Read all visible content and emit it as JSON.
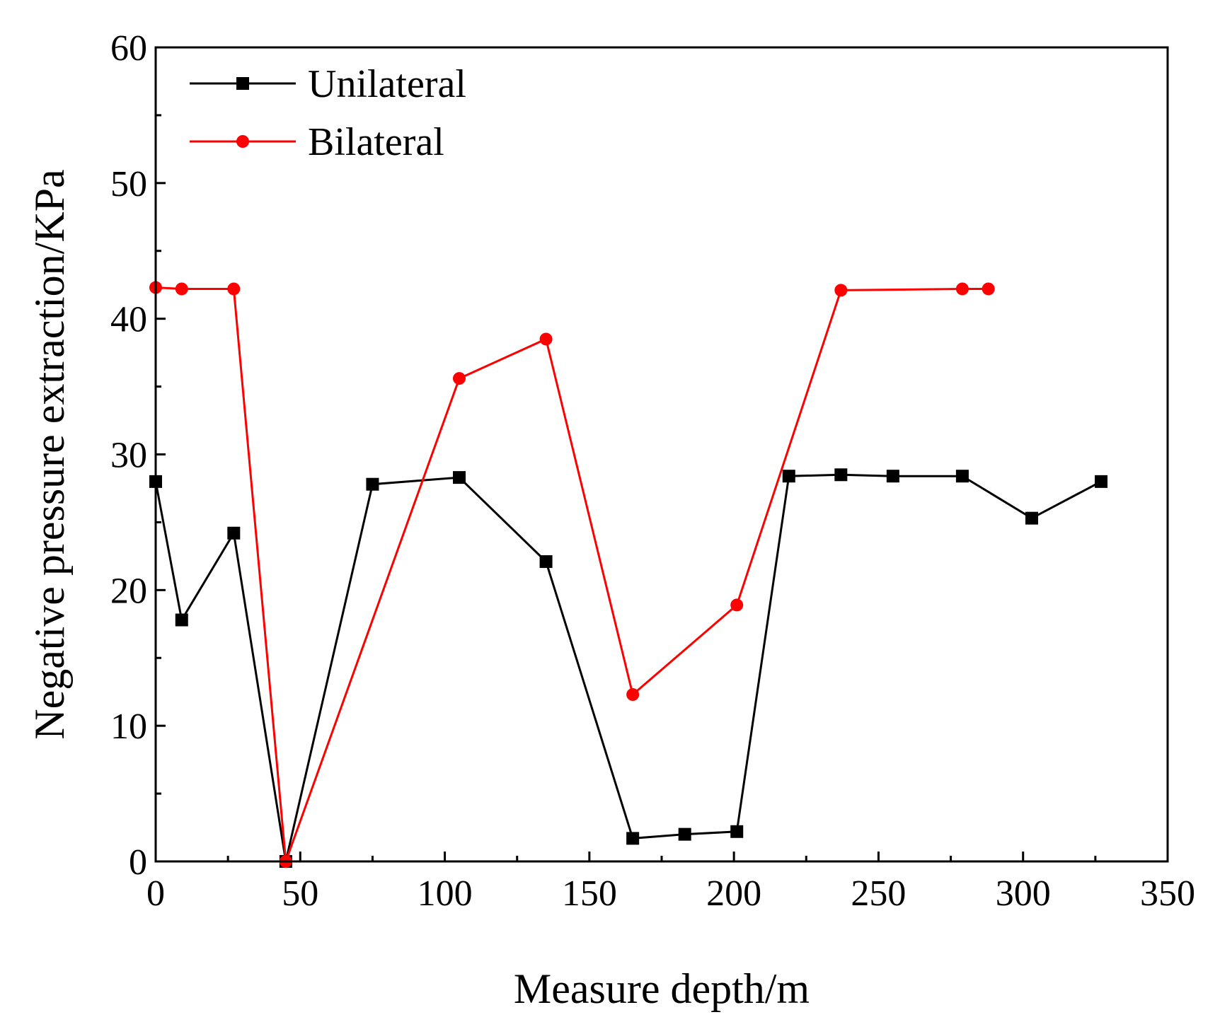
{
  "chart_data": {
    "type": "line",
    "title": "",
    "xlabel": "Measure depth/m",
    "ylabel": "Negative pressure extraction/KPa",
    "xlim": [
      0,
      350
    ],
    "ylim": [
      0,
      60
    ],
    "xticks": [
      0,
      50,
      100,
      150,
      200,
      250,
      300,
      350
    ],
    "yticks": [
      0,
      10,
      20,
      30,
      40,
      50,
      60
    ],
    "grid": false,
    "legend_position": "top-left",
    "series": [
      {
        "name": "Unilateral",
        "color": "#000000",
        "marker": "square",
        "x": [
          0,
          9,
          27,
          45,
          75,
          105,
          135,
          165,
          183,
          201,
          219,
          237,
          255,
          279,
          303,
          327
        ],
        "y": [
          28.0,
          17.8,
          24.2,
          0.0,
          27.8,
          28.3,
          22.1,
          1.7,
          2.0,
          2.2,
          28.4,
          28.5,
          28.4,
          28.4,
          25.3,
          28.0
        ]
      },
      {
        "name": "Bilateral",
        "color": "#ff0000",
        "marker": "circle",
        "x": [
          0,
          9,
          27,
          45,
          105,
          135,
          165,
          201,
          237,
          279,
          288
        ],
        "y": [
          42.3,
          42.2,
          42.2,
          0.0,
          35.6,
          38.5,
          12.3,
          18.9,
          42.1,
          42.2,
          42.2
        ]
      }
    ]
  }
}
